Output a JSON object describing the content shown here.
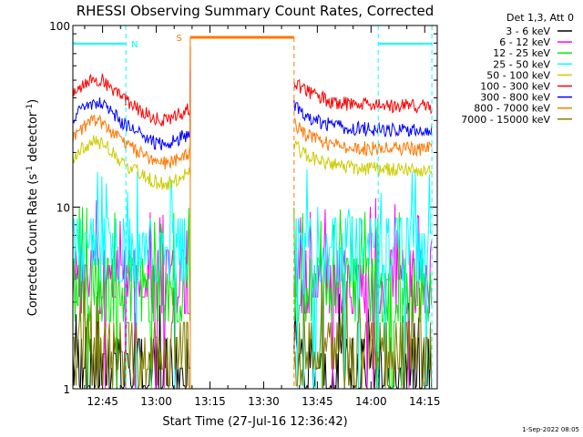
{
  "chart_data": {
    "type": "line",
    "title": "RHESSI Observing Summary Count Rates, Corrected",
    "xlabel": "Start Time (27-Jul-16 12:36:42)",
    "ylabel": "Corrected Count Rate (s⁻¹ detector⁻¹)",
    "ylabel_base": "Corrected Count Rate (s",
    "ylabel_mid": " detector",
    "ylabel_end": ")",
    "ylabel_sup": "-1",
    "yscale": "log",
    "ylim": [
      1,
      100
    ],
    "y_ticks": [
      {
        "value": 1,
        "label": "1"
      },
      {
        "value": 10,
        "label": "10"
      },
      {
        "value": 100,
        "label": "100"
      }
    ],
    "xlim_minutes": [
      36.7,
      138.5
    ],
    "x_ticks": [
      {
        "minutes": 45,
        "label": "12:45"
      },
      {
        "minutes": 60,
        "label": "13:00"
      },
      {
        "minutes": 75,
        "label": "13:15"
      },
      {
        "minutes": 90,
        "label": "13:30"
      },
      {
        "minutes": 105,
        "label": "13:45"
      },
      {
        "minutes": 120,
        "label": "14:00"
      },
      {
        "minutes": 135,
        "label": "14:15"
      }
    ],
    "legend_title": "Det 1,3, Att 0",
    "legend_placement": "right",
    "series": [
      {
        "name": "3 - 6 keV",
        "color": "#000000",
        "level": 1.3
      },
      {
        "name": "6 - 12 keV",
        "color": "#ff00ff",
        "level": 4.0
      },
      {
        "name": "12 - 25 keV",
        "color": "#00ee00",
        "level": 3.6
      },
      {
        "name": "25 - 50 keV",
        "color": "#00ffff",
        "level": 6.0
      },
      {
        "name": "50 - 100 keV",
        "color": "#cccc00",
        "level": 17
      },
      {
        "name": "100 - 300 keV",
        "color": "#ff0000",
        "level": 38
      },
      {
        "name": "300 - 800 keV",
        "color": "#0000ff",
        "level": 28
      },
      {
        "name": "800 - 7000 keV",
        "color": "#ff7700",
        "level": 22
      },
      {
        "name": "7000 - 15000 keV",
        "color": "#808000",
        "level": 1.6
      }
    ],
    "annotations": [
      {
        "label": "N",
        "color": "#00ffff"
      },
      {
        "label": "S",
        "color": "#ff7700"
      }
    ],
    "night_intervals_minutes": [
      [
        36.7,
        51.5
      ],
      [
        122.0,
        137.0
      ]
    ],
    "saa_interval_minutes": [
      [
        69.5,
        98.5
      ]
    ],
    "gap_minutes": [
      [
        69.5,
        98.5
      ]
    ]
  },
  "footer": {
    "timestamp": "1-Sep-2022 08:05"
  }
}
